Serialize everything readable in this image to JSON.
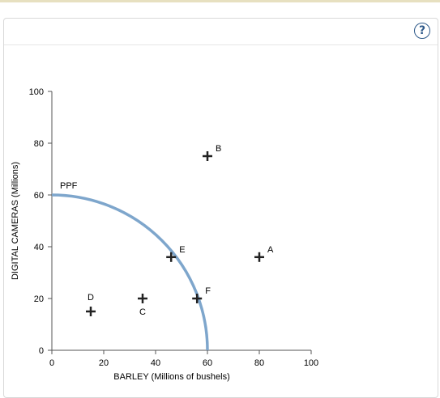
{
  "help": {
    "label": "?"
  },
  "chart_data": {
    "type": "scatter",
    "xlabel": "BARLEY (Millions of bushels)",
    "ylabel": "DIGITAL CAMERAS (Millions)",
    "xlim": [
      0,
      100
    ],
    "ylim": [
      0,
      100
    ],
    "xticks": [
      0,
      20,
      40,
      60,
      80,
      100
    ],
    "yticks": [
      0,
      20,
      40,
      60,
      80,
      100
    ],
    "grid": false,
    "ppf": {
      "label": "PPF",
      "color": "#7ea6cc",
      "x_intercept": 60,
      "y_intercept": 60
    },
    "points": [
      {
        "name": "A",
        "x": 80,
        "y": 36
      },
      {
        "name": "B",
        "x": 60,
        "y": 75
      },
      {
        "name": "C",
        "x": 35,
        "y": 20
      },
      {
        "name": "D",
        "x": 15,
        "y": 15
      },
      {
        "name": "E",
        "x": 46,
        "y": 36
      },
      {
        "name": "F",
        "x": 56,
        "y": 20
      }
    ]
  }
}
